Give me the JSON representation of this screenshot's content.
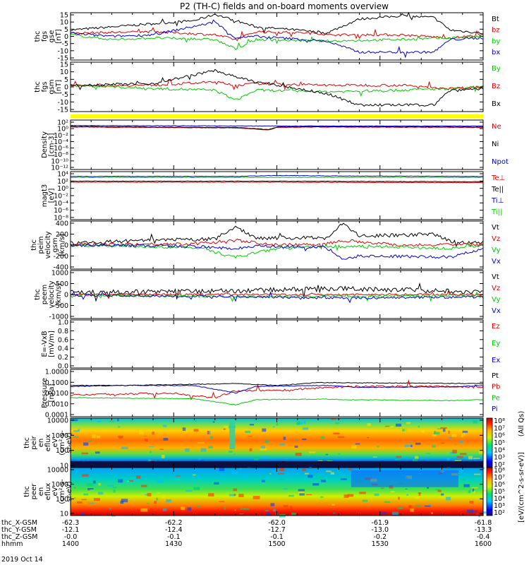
{
  "title": "P2 (TH-C) fields and on-board moments overview",
  "chart_data": [
    {
      "type": "line",
      "panel": "fgs_gse",
      "ylabel": [
        "thc",
        "fgs",
        "gse",
        "[nT]"
      ],
      "yticks": [
        "15",
        "10",
        "5",
        "0",
        "-5",
        "-10",
        "-15"
      ],
      "ylim": [
        -15,
        15
      ],
      "series": [
        {
          "name": "Bt",
          "color": "#000000",
          "x": [
            0,
            0.1,
            0.2,
            0.3,
            0.35,
            0.4,
            0.45,
            0.55,
            0.62,
            0.7,
            0.8,
            0.88,
            0.92,
            0.96,
            1.0
          ],
          "y": [
            4,
            6,
            8,
            10,
            14,
            10,
            6,
            4,
            2,
            11,
            13,
            12,
            4,
            3,
            2
          ]
        },
        {
          "name": "bz",
          "color": "#e00000",
          "x": [
            0,
            0.2,
            0.35,
            0.4,
            0.45,
            0.6,
            0.62,
            0.8,
            0.92,
            1.0
          ],
          "y": [
            2,
            3,
            1,
            -2,
            3,
            2,
            1,
            1,
            -1,
            1
          ]
        },
        {
          "name": "by",
          "color": "#00cc00",
          "x": [
            0,
            0.1,
            0.2,
            0.35,
            0.4,
            0.45,
            0.62,
            0.8,
            0.92,
            1.0
          ],
          "y": [
            1,
            -2,
            -1,
            -2,
            -8,
            -2,
            -3,
            -2,
            -1,
            0
          ]
        },
        {
          "name": "bx",
          "color": "#0000d0",
          "x": [
            0,
            0.1,
            0.2,
            0.35,
            0.4,
            0.45,
            0.62,
            0.7,
            0.88,
            0.92,
            1.0
          ],
          "y": [
            2,
            0,
            1,
            9,
            -1,
            0,
            -3,
            -10,
            -10,
            -2,
            -1
          ]
        }
      ]
    },
    {
      "type": "line",
      "panel": "fgs_gsm",
      "ylabel": [
        "thc",
        "fgs",
        "gsm",
        "[nT]"
      ],
      "yticks": [
        "15",
        "10",
        "5",
        "0",
        "-5",
        "-10",
        "-15"
      ],
      "ylim": [
        -15,
        15
      ],
      "series": [
        {
          "name": "By",
          "color": "#00cc00",
          "x": [
            0,
            0.2,
            0.35,
            0.4,
            0.45,
            0.62,
            0.8,
            0.92,
            1.0
          ],
          "y": [
            1,
            -1,
            -2,
            -8,
            -2,
            -3,
            -2,
            -1,
            0
          ]
        },
        {
          "name": "Bz",
          "color": "#e00000",
          "x": [
            0,
            0.2,
            0.35,
            0.4,
            0.45,
            0.62,
            0.8,
            0.92,
            1.0
          ],
          "y": [
            1,
            1,
            3,
            1,
            2,
            1,
            1,
            -1,
            0
          ]
        },
        {
          "name": "Bx",
          "color": "#000000",
          "x": [
            0,
            0.2,
            0.35,
            0.4,
            0.45,
            0.62,
            0.7,
            0.88,
            0.92,
            1.0
          ],
          "y": [
            1,
            2,
            10,
            6,
            3,
            -4,
            -11,
            -11,
            -2,
            -1
          ]
        }
      ]
    },
    {
      "type": "line",
      "panel": "density",
      "ylabel": [
        "Density",
        "[cm-3]"
      ],
      "yticks": [
        "10²",
        "10⁰",
        "10⁻²",
        "10⁻⁴",
        "10⁻⁶",
        "10⁻⁸",
        "10⁻¹⁰",
        "10⁻¹²"
      ],
      "series": [
        {
          "name": "Ne",
          "color": "#e00000"
        },
        {
          "name": "Ni",
          "color": "#000000"
        },
        {
          "name": "Npot",
          "color": "#0000d0"
        }
      ]
    },
    {
      "type": "line",
      "panel": "temperature",
      "ylabel": [
        "magt3",
        "[eV]"
      ],
      "yticks": [
        "10⁴",
        "10²",
        "10⁰",
        "10⁻²",
        "10⁻⁴",
        "10⁻⁶",
        "10⁻⁸"
      ],
      "series": [
        {
          "name": "Te⊥",
          "color": "#e00000"
        },
        {
          "name": "Te||",
          "color": "#000000"
        },
        {
          "name": "Ti⊥",
          "color": "#0000d0"
        },
        {
          "name": "Ti||",
          "color": "#00cc00"
        }
      ]
    },
    {
      "type": "line",
      "panel": "peim_velocity",
      "ylabel": [
        "thc",
        "peim",
        "velocity",
        "gsm",
        "[km/s]"
      ],
      "yticks": [
        "400",
        "200",
        "0",
        "-200",
        "-400"
      ],
      "ylim": [
        -400,
        400
      ],
      "series": [
        {
          "name": "Vt",
          "color": "#000000"
        },
        {
          "name": "Vz",
          "color": "#e00000"
        },
        {
          "name": "Vy",
          "color": "#00cc00"
        },
        {
          "name": "Vx",
          "color": "#0000d0"
        }
      ]
    },
    {
      "type": "line",
      "panel": "peem_velocity",
      "ylabel": [
        "thc",
        "peem",
        "velocity",
        "[km/s]"
      ],
      "yticks": [
        "1000",
        "500",
        "0",
        "-500",
        "-1000"
      ],
      "ylim": [
        -1000,
        1000
      ],
      "series": [
        {
          "name": "Vt",
          "color": "#000000"
        },
        {
          "name": "Vz",
          "color": "#e00000"
        },
        {
          "name": "Vy",
          "color": "#00cc00"
        },
        {
          "name": "Vx",
          "color": "#0000d0"
        }
      ]
    },
    {
      "type": "line",
      "panel": "efield",
      "ylabel": [
        "E=-VxB",
        "[mV/m]"
      ],
      "yticks": [
        "1.0",
        "0.8",
        "0.6",
        "0.4",
        "0.2",
        "0.0"
      ],
      "ylim": [
        0,
        1
      ],
      "series": [
        {
          "name": "Ez",
          "color": "#e00000"
        },
        {
          "name": "Ey",
          "color": "#00cc00"
        },
        {
          "name": "Ex",
          "color": "#0000d0"
        }
      ]
    },
    {
      "type": "line",
      "panel": "pressure",
      "ylabel": [
        "Pressure",
        "[nPa]"
      ],
      "yticks": [
        "1.0000",
        "0.1000",
        "0.0100",
        "0.0010",
        "0.0001"
      ],
      "series": [
        {
          "name": "Pt",
          "color": "#000000"
        },
        {
          "name": "Pb",
          "color": "#e00000"
        },
        {
          "name": "Pe",
          "color": "#00cc00"
        },
        {
          "name": "Pi",
          "color": "#0000d0"
        }
      ]
    },
    {
      "type": "heatmap",
      "panel": "peir_en_eflux",
      "ylabel": [
        "thc",
        "peir",
        "en",
        "eflux",
        "eV",
        "(cm²-s-",
        "sr-eV)"
      ],
      "yticks": [
        "10000",
        "1000",
        "100",
        "10"
      ]
    },
    {
      "type": "heatmap",
      "panel": "peer_en_eflux",
      "ylabel": [
        "thc",
        "peer",
        "en",
        "eflux",
        "eV",
        "(cm²-s-",
        "sr-eV)"
      ],
      "yticks": [
        "10000",
        "1000",
        "100",
        "10"
      ]
    }
  ],
  "colorbar": {
    "label": "[eV/(cm^2-s-sr-eV)]",
    "label_right": "(All Qs)",
    "ticks_top": [
      "10⁸",
      "10⁷",
      "10⁶",
      "10⁵",
      "10⁴",
      "10³",
      "10²"
    ],
    "ticks_bottom": [
      "10⁸",
      "10⁷",
      "10⁶",
      "10⁵",
      "10⁴",
      "10³",
      "10²"
    ]
  },
  "xaxis": {
    "rows": [
      {
        "label": "thc_X-GSM",
        "values": [
          "-62.3",
          "-62.2",
          "-62.0",
          "-61.9",
          "-61.8"
        ]
      },
      {
        "label": "thc_Y-GSM",
        "values": [
          "-12.1",
          "-12.4",
          "-12.7",
          "-13.0",
          "-13.3"
        ]
      },
      {
        "label": "thc_Z-GSM",
        "values": [
          "-0.0",
          "-0.1",
          "-0.1",
          "-0.2",
          "-0.4"
        ]
      },
      {
        "label": "hhmm",
        "values": [
          "1400",
          "1430",
          "1500",
          "1530",
          "1600"
        ]
      }
    ],
    "date": "2019 Oct 14"
  }
}
